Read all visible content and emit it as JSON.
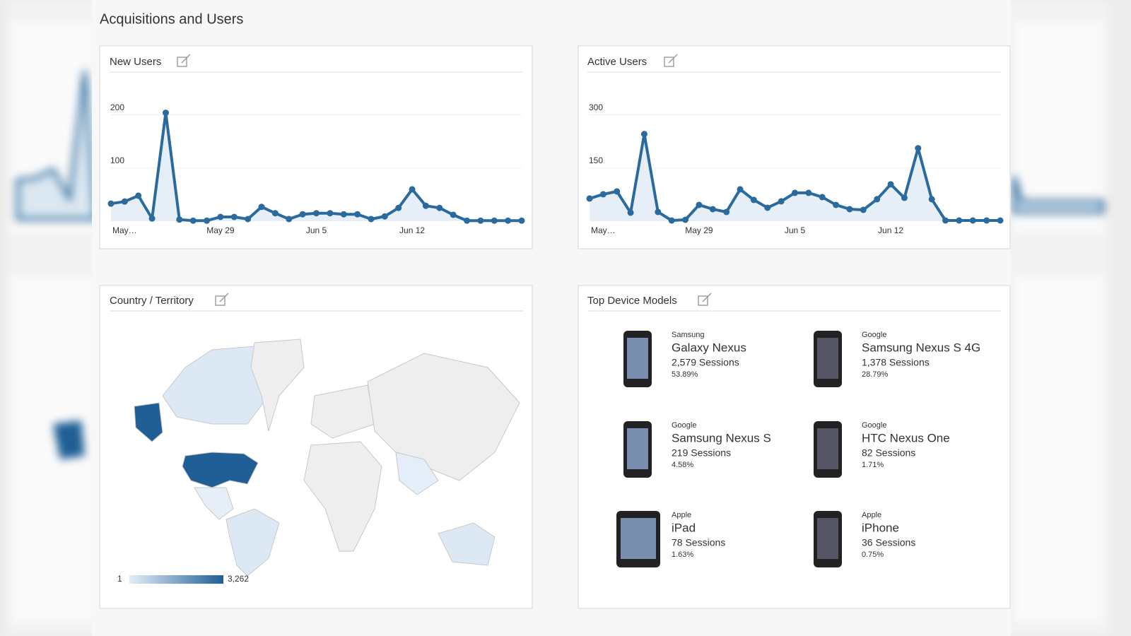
{
  "title": "Acquisitions and Users",
  "chart_data": [
    {
      "type": "line",
      "title": "New Users",
      "color": "#2a6a9c",
      "categories": [
        null,
        "May…",
        null,
        null,
        null,
        null,
        null,
        null,
        "May 29",
        null,
        null,
        null,
        null,
        null,
        null,
        "Jun 5",
        null,
        null,
        null,
        null,
        null,
        null,
        "Jun 12",
        null,
        null,
        null,
        null,
        null,
        null,
        null,
        null
      ],
      "values": [
        33,
        37,
        48,
        5,
        204,
        3,
        1,
        1,
        8,
        8,
        4,
        27,
        15,
        4,
        13,
        15,
        15,
        13,
        13,
        4,
        9,
        25,
        60,
        29,
        25,
        12,
        1,
        1,
        1,
        1,
        1
      ],
      "ylim": [
        0,
        250
      ],
      "yticks": [
        100,
        200
      ],
      "grid": true
    },
    {
      "type": "line",
      "title": "Active Users",
      "color": "#2a6a9c",
      "categories": [
        null,
        "May…",
        null,
        null,
        null,
        null,
        null,
        null,
        "May 29",
        null,
        null,
        null,
        null,
        null,
        null,
        "Jun 5",
        null,
        null,
        null,
        null,
        null,
        null,
        "Jun 12",
        null,
        null,
        null,
        null,
        null,
        null,
        null,
        null
      ],
      "values": [
        64,
        76,
        84,
        24,
        246,
        26,
        2,
        4,
        46,
        34,
        26,
        90,
        60,
        38,
        56,
        80,
        80,
        68,
        46,
        34,
        32,
        62,
        104,
        66,
        206,
        62,
        2,
        2,
        2,
        2,
        2
      ],
      "ylim": [
        0,
        375
      ],
      "yticks": [
        150,
        300
      ],
      "grid": true
    }
  ],
  "map": {
    "title": "Country / Territory",
    "legend_min": "1",
    "legend_max": "3,262"
  },
  "devices": {
    "title": "Top Device Models",
    "items": [
      {
        "brand": "Samsung",
        "model": "Galaxy Nexus",
        "sessions": "2,579 Sessions",
        "share": "53.89%"
      },
      {
        "brand": "Google",
        "model": "Samsung Nexus S 4G",
        "sessions": "1,378 Sessions",
        "share": "28.79%"
      },
      {
        "brand": "Google",
        "model": "Samsung Nexus S",
        "sessions": "219 Sessions",
        "share": "4.58%"
      },
      {
        "brand": "Google",
        "model": "HTC Nexus One",
        "sessions": "82 Sessions",
        "share": "1.71%"
      },
      {
        "brand": "Apple",
        "model": "iPad",
        "sessions": "78 Sessions",
        "share": "1.63%"
      },
      {
        "brand": "Apple",
        "model": "iPhone",
        "sessions": "36 Sessions",
        "share": "0.75%"
      }
    ]
  }
}
